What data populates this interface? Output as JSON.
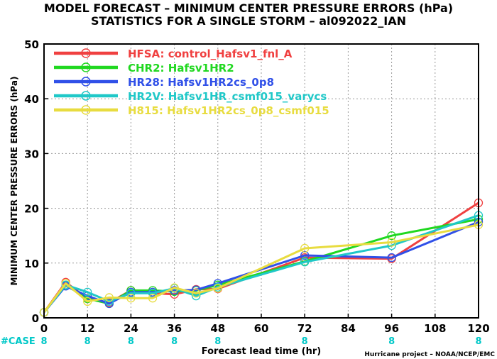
{
  "titles": {
    "line1": "MODEL FORECAST – MINIMUM CENTER PRESSURE ERRORS (hPa)",
    "line2": "STATISTICS FOR A SINGLE STORM – al092022_IAN"
  },
  "credit": "Hurricane project – NOAA/NCEP/EMC",
  "case_label": "#CASE",
  "case_color": "#00c8c8",
  "chart_data": {
    "type": "line",
    "xlabel": "Forecast lead time (hr)",
    "ylabel": "MINIMUM CENTER PRESSURE ERRORS (hPa)",
    "xlim": [
      0,
      120
    ],
    "ylim": [
      0,
      50
    ],
    "x_ticks": [
      0,
      12,
      24,
      36,
      48,
      60,
      72,
      84,
      96,
      108,
      120
    ],
    "y_ticks": [
      0,
      10,
      20,
      30,
      40,
      50
    ],
    "grid": true,
    "legend_position": "top-left",
    "cases": [
      {
        "x": 0,
        "label": "8"
      },
      {
        "x": 12,
        "label": "8"
      },
      {
        "x": 24,
        "label": "8"
      },
      {
        "x": 36,
        "label": "8"
      },
      {
        "x": 48,
        "label": "8"
      },
      {
        "x": 72,
        "label": "8"
      },
      {
        "x": 96,
        "label": "8"
      },
      {
        "x": 120,
        "label": "8"
      }
    ],
    "series": [
      {
        "name": "HFSA: control_Hafsv1_fnl_A",
        "color": "#f04040",
        "x": [
          0,
          6,
          12,
          18,
          24,
          30,
          36,
          42,
          48,
          72,
          96,
          120
        ],
        "y": [
          1.0,
          6.5,
          3.5,
          2.8,
          5.0,
          4.5,
          4.3,
          5.2,
          5.3,
          11.0,
          10.8,
          21.0
        ]
      },
      {
        "name": "CHR2: Hafsv1HR2",
        "color": "#20d820",
        "x": [
          0,
          6,
          12,
          18,
          24,
          30,
          36,
          42,
          48,
          72,
          96,
          120
        ],
        "y": [
          1.0,
          6.0,
          3.5,
          2.6,
          5.0,
          5.0,
          4.8,
          5.0,
          6.0,
          10.3,
          15.0,
          18.0
        ]
      },
      {
        "name": "HR28: Hafsv1HR2cs_0p8",
        "color": "#3050e8",
        "x": [
          0,
          6,
          12,
          18,
          24,
          30,
          36,
          42,
          48,
          72,
          96,
          120
        ],
        "y": [
          1.0,
          5.8,
          4.0,
          2.6,
          4.7,
          4.7,
          5.0,
          5.1,
          6.3,
          11.4,
          11.0,
          17.5
        ]
      },
      {
        "name": "HR2V: Hafsv1HR_csmf015_varycs",
        "color": "#20c8c8",
        "x": [
          0,
          6,
          12,
          18,
          24,
          30,
          36,
          42,
          48,
          72,
          96,
          120
        ],
        "y": [
          1.0,
          6.0,
          4.7,
          3.0,
          4.5,
          4.5,
          5.4,
          4.0,
          5.6,
          10.2,
          13.2,
          18.7
        ]
      },
      {
        "name": "H815: Hafsv1HR2cs_0p8_csmf015",
        "color": "#e8dc40",
        "x": [
          0,
          6,
          12,
          18,
          24,
          30,
          36,
          42,
          48,
          72,
          96,
          120
        ],
        "y": [
          1.0,
          6.3,
          3.0,
          3.7,
          3.6,
          3.6,
          5.5,
          4.5,
          5.4,
          12.7,
          13.8,
          17.0
        ]
      }
    ]
  }
}
